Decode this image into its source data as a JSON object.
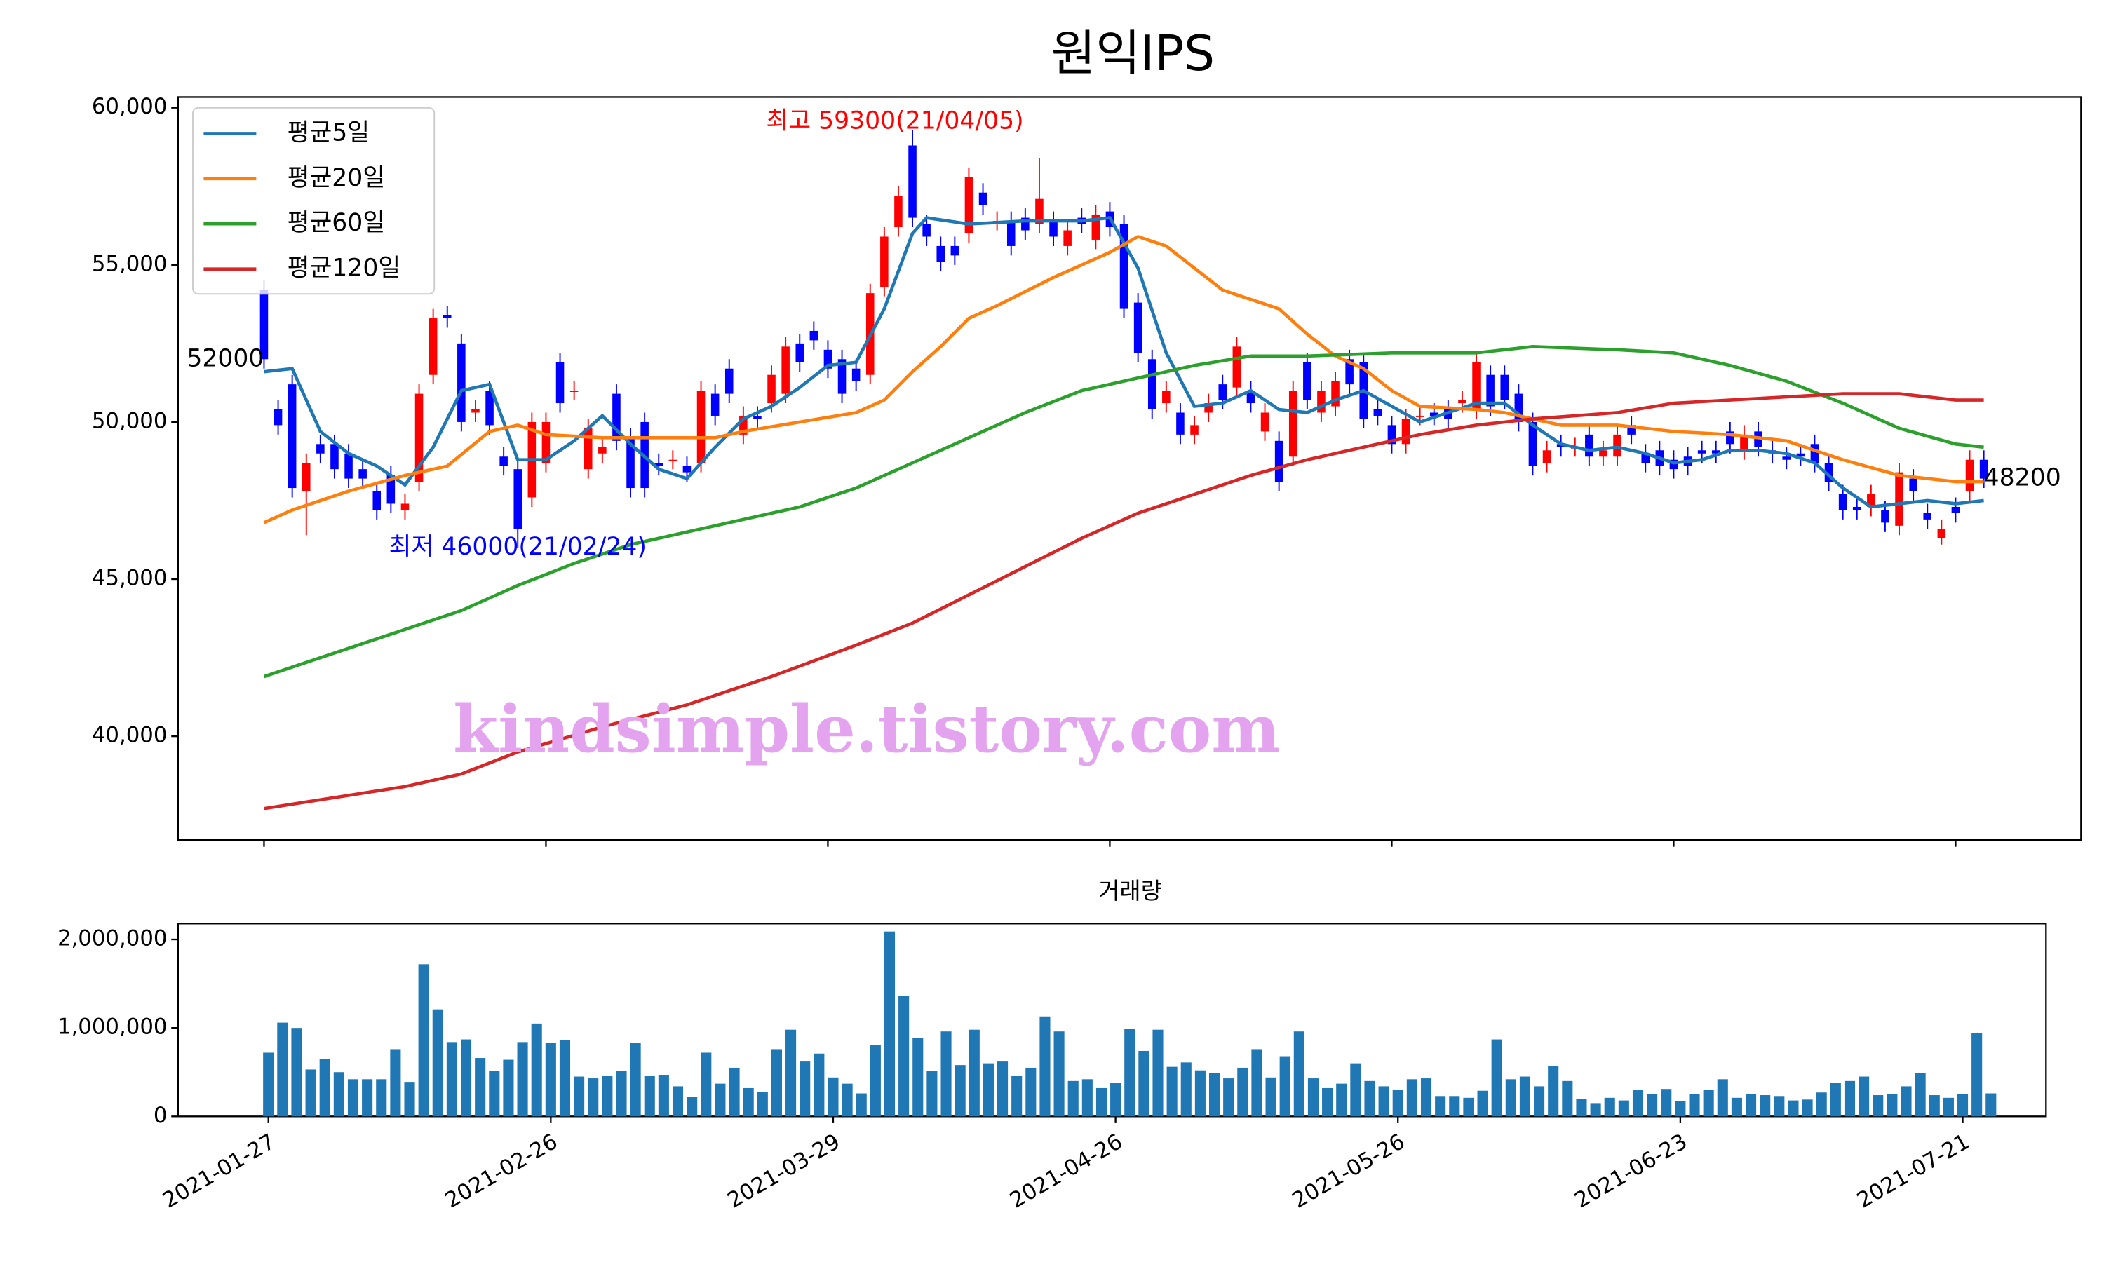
{
  "chart_data": [
    {
      "type": "candlestick",
      "title": "원익IPS",
      "up_color": "#ff0000",
      "down_color": "#0000ff",
      "open": [
        54200,
        50400,
        51200,
        47800,
        49300,
        49300,
        49000,
        48500,
        47800,
        48300,
        47200,
        48100,
        51500,
        53400,
        52500,
        50300,
        51000,
        48900,
        48500,
        47600,
        48700,
        51900,
        51000,
        48500,
        49000,
        50900,
        49500,
        50000,
        48700,
        48800,
        48600,
        48700,
        50900,
        51700,
        49600,
        50200,
        50600,
        50900,
        52500,
        52900,
        52300,
        52000,
        51700,
        51500,
        54300,
        56200,
        58800,
        56300,
        55600,
        55600,
        56000,
        57300,
        56400,
        56400,
        56500,
        56300,
        56400,
        55600,
        56500,
        55800,
        56700,
        56300,
        53800,
        52000,
        50600,
        50300,
        49600,
        50300,
        51200,
        51100,
        51000,
        49700,
        49400,
        48900,
        51900,
        50300,
        50500,
        52000,
        51900,
        50400,
        49900,
        49300,
        50200,
        50300,
        50400,
        50600,
        50400,
        51500,
        51500,
        50900,
        50000,
        48700,
        49300,
        49200,
        49600,
        48900,
        48900,
        49900,
        49000,
        49100,
        48800,
        48900,
        49100,
        49100,
        49700,
        49100,
        49700,
        49100,
        48900,
        49000,
        49300,
        48700,
        47700,
        47300,
        47300,
        47200,
        46700,
        48200,
        47100,
        46300,
        47300,
        47800,
        48800
      ],
      "high": [
        54500,
        50700,
        51500,
        49000,
        49600,
        49600,
        49300,
        48800,
        48100,
        48600,
        47700,
        51200,
        53600,
        53700,
        52800,
        50700,
        51300,
        49200,
        48800,
        50300,
        50300,
        52200,
        51300,
        50100,
        49500,
        51200,
        49800,
        50300,
        49000,
        49100,
        48900,
        51300,
        51200,
        52000,
        50500,
        50500,
        51800,
        52700,
        52800,
        53200,
        52600,
        52300,
        52000,
        54400,
        56200,
        57500,
        59300,
        56600,
        55900,
        55900,
        58100,
        57600,
        56700,
        56700,
        56800,
        58400,
        56700,
        56400,
        56800,
        56900,
        57000,
        56600,
        54100,
        52300,
        51300,
        50600,
        50200,
        50900,
        51500,
        52700,
        51300,
        50600,
        49700,
        51300,
        52200,
        51300,
        51600,
        52300,
        52200,
        50700,
        50200,
        50400,
        50500,
        50600,
        50700,
        51000,
        52200,
        51800,
        51800,
        51200,
        50300,
        49400,
        49600,
        49500,
        49900,
        49400,
        49900,
        50200,
        49300,
        49400,
        49100,
        49200,
        49400,
        49400,
        50000,
        49900,
        50000,
        49400,
        49200,
        49300,
        49600,
        49000,
        48000,
        47600,
        48000,
        47500,
        48700,
        48500,
        47400,
        46900,
        47600,
        49100,
        49100
      ],
      "low": [
        51700,
        49600,
        47600,
        46400,
        48700,
        48200,
        47900,
        47900,
        46900,
        47100,
        46900,
        47800,
        51200,
        53000,
        49700,
        50000,
        49600,
        48300,
        46000,
        47300,
        48400,
        50300,
        50700,
        48200,
        48700,
        49100,
        47600,
        47600,
        48300,
        48500,
        48100,
        48400,
        49900,
        50600,
        49300,
        49800,
        50300,
        50600,
        51600,
        52300,
        51400,
        50600,
        51000,
        51200,
        54000,
        55900,
        56200,
        55600,
        54800,
        55000,
        55700,
        56600,
        56100,
        55300,
        55800,
        56000,
        55600,
        55300,
        56000,
        55500,
        55900,
        53300,
        51900,
        50100,
        50300,
        49300,
        49300,
        50000,
        50400,
        50800,
        50300,
        49400,
        47800,
        48600,
        50400,
        50000,
        50200,
        50900,
        49800,
        49900,
        49000,
        49000,
        49900,
        49900,
        49800,
        50300,
        50100,
        50200,
        50400,
        49700,
        48300,
        48400,
        48900,
        48900,
        48600,
        48600,
        48600,
        49300,
        48400,
        48300,
        48200,
        48300,
        48700,
        48700,
        49000,
        48800,
        48900,
        48700,
        48500,
        48600,
        48400,
        47800,
        46900,
        46900,
        47000,
        46500,
        46400,
        47500,
        46600,
        46100,
        46800,
        47500,
        47900
      ],
      "close": [
        52000,
        49900,
        47900,
        48700,
        49000,
        48500,
        48200,
        48200,
        47200,
        47400,
        47400,
        50900,
        53300,
        53300,
        50000,
        50400,
        49900,
        48600,
        46600,
        50000,
        50000,
        50600,
        51000,
        49800,
        49200,
        49400,
        47900,
        47900,
        48600,
        48800,
        48400,
        51000,
        50200,
        50900,
        50200,
        50100,
        51500,
        52400,
        51900,
        52600,
        51700,
        50900,
        51300,
        54100,
        55900,
        57200,
        56500,
        55900,
        55100,
        55300,
        57800,
        56900,
        56400,
        55600,
        56100,
        57100,
        55900,
        56100,
        56300,
        56600,
        56200,
        53600,
        52200,
        50400,
        51000,
        49600,
        49900,
        50600,
        50700,
        52400,
        50600,
        50300,
        48100,
        51000,
        50700,
        51000,
        51300,
        51200,
        50100,
        50200,
        49300,
        50100,
        50200,
        50200,
        50100,
        50700,
        51900,
        50500,
        50700,
        50000,
        48600,
        49100,
        49200,
        49200,
        48900,
        49100,
        49600,
        49600,
        48700,
        48600,
        48500,
        48600,
        49000,
        49000,
        49300,
        49600,
        49200,
        49000,
        48800,
        48900,
        48700,
        48100,
        47200,
        47200,
        47700,
        46800,
        48400,
        47800,
        46900,
        46600,
        47100,
        48800,
        48200
      ],
      "series": [
        {
          "name": "평균5일",
          "color": "#1f77b4",
          "x": [
            0,
            2,
            4,
            6,
            8,
            10,
            12,
            14,
            16,
            18,
            20,
            22,
            24,
            26,
            28,
            30,
            32,
            34,
            36,
            38,
            40,
            42,
            44,
            46,
            47,
            50,
            54,
            58,
            60,
            62,
            64,
            66,
            68,
            70,
            72,
            74,
            76,
            78,
            80,
            82,
            84,
            86,
            88,
            90,
            92,
            94,
            96,
            98,
            100,
            102,
            104,
            106,
            108,
            110,
            112,
            114,
            116,
            118,
            120,
            122
          ],
          "values": [
            51600,
            51700,
            49700,
            49000,
            48600,
            48000,
            49200,
            51000,
            51200,
            48800,
            48800,
            49400,
            50200,
            49300,
            48500,
            48200,
            49200,
            50100,
            50500,
            51100,
            51800,
            51900,
            53600,
            56000,
            56500,
            56300,
            56400,
            56400,
            56500,
            54900,
            52200,
            50500,
            50600,
            51000,
            50400,
            50300,
            50700,
            51000,
            50500,
            50000,
            50300,
            50600,
            50600,
            49900,
            49300,
            49100,
            49200,
            49000,
            48700,
            48800,
            49100,
            49100,
            49000,
            48700,
            47900,
            47300,
            47400,
            47500,
            47400,
            47500
          ]
        },
        {
          "name": "평균20일",
          "color": "#ff7f0e",
          "x": [
            0,
            2,
            6,
            10,
            13,
            16,
            18,
            20,
            24,
            28,
            32,
            34,
            38,
            42,
            44,
            46,
            48,
            50,
            52,
            56,
            60,
            62,
            64,
            66,
            68,
            70,
            72,
            74,
            76,
            78,
            80,
            82,
            86,
            88,
            92,
            96,
            100,
            104,
            108,
            112,
            116,
            120,
            122
          ],
          "values": [
            46800,
            47200,
            47800,
            48300,
            48600,
            49700,
            49900,
            49600,
            49500,
            49500,
            49500,
            49700,
            50000,
            50300,
            50700,
            51600,
            52400,
            53300,
            53700,
            54600,
            55400,
            55900,
            55600,
            54900,
            54200,
            53900,
            53600,
            52800,
            52100,
            51700,
            51000,
            50500,
            50400,
            50300,
            49900,
            49900,
            49700,
            49600,
            49400,
            48800,
            48300,
            48100,
            48100
          ]
        },
        {
          "name": "평균60일",
          "color": "#2ca02c",
          "x": [
            0,
            4,
            10,
            14,
            16,
            18,
            22,
            26,
            30,
            34,
            38,
            42,
            46,
            50,
            54,
            58,
            62,
            66,
            70,
            74,
            80,
            86,
            90,
            96,
            100,
            104,
            108,
            112,
            116,
            120,
            122
          ],
          "values": [
            41900,
            42500,
            43400,
            44000,
            44400,
            44800,
            45500,
            46100,
            46500,
            46900,
            47300,
            47900,
            48700,
            49500,
            50300,
            51000,
            51400,
            51800,
            52100,
            52100,
            52200,
            52200,
            52400,
            52300,
            52200,
            51800,
            51300,
            50600,
            49800,
            49300,
            49200
          ]
        },
        {
          "name": "평균120일",
          "color": "#d62728",
          "x": [
            0,
            10,
            14,
            18,
            24,
            30,
            36,
            42,
            46,
            50,
            54,
            58,
            62,
            66,
            70,
            74,
            78,
            82,
            86,
            90,
            96,
            100,
            104,
            108,
            112,
            116,
            120,
            122
          ],
          "values": [
            37700,
            38400,
            38800,
            39500,
            40300,
            41000,
            41900,
            42900,
            43600,
            44500,
            45400,
            46300,
            47100,
            47700,
            48300,
            48800,
            49200,
            49600,
            49900,
            50100,
            50300,
            50600,
            50700,
            50800,
            50900,
            50900,
            50700,
            50700
          ]
        }
      ],
      "annotations": [
        {
          "text": "최고 59300(21/04/05)",
          "color": "#ff0000"
        },
        {
          "text": "최저 46000(21/02/24)",
          "color": "#0000ff"
        },
        {
          "text": "52000",
          "color": "#000000"
        },
        {
          "text": "48200",
          "color": "#000000"
        }
      ],
      "watermark": "kindsimple.tistory.com",
      "legend": "upper left",
      "xlim": [
        -6.1,
        128.9
      ],
      "xticks": [
        0,
        20,
        40,
        60,
        80,
        100,
        120
      ],
      "ylim": [
        36700,
        60340
      ],
      "yticks": [
        {
          "value": 40000,
          "label": "40,000"
        },
        {
          "value": 45000,
          "label": "45,000"
        },
        {
          "value": 50000,
          "label": "50,000"
        },
        {
          "value": 55000,
          "label": "55,000"
        },
        {
          "value": 60000,
          "label": "60,000"
        }
      ]
    },
    {
      "type": "bar",
      "title": "거래량",
      "color": "#1f77b4",
      "values": [
        720000,
        1060000,
        1000000,
        530000,
        650000,
        500000,
        420000,
        420000,
        420000,
        760000,
        390000,
        1720000,
        1210000,
        840000,
        870000,
        660000,
        510000,
        640000,
        840000,
        1050000,
        830000,
        860000,
        450000,
        430000,
        460000,
        510000,
        830000,
        460000,
        470000,
        340000,
        220000,
        720000,
        370000,
        550000,
        320000,
        280000,
        760000,
        980000,
        620000,
        710000,
        440000,
        370000,
        260000,
        810000,
        2090000,
        1360000,
        890000,
        510000,
        960000,
        580000,
        980000,
        600000,
        620000,
        460000,
        550000,
        1130000,
        960000,
        400000,
        420000,
        320000,
        380000,
        990000,
        740000,
        980000,
        560000,
        610000,
        520000,
        490000,
        430000,
        550000,
        760000,
        440000,
        680000,
        960000,
        430000,
        320000,
        370000,
        600000,
        400000,
        340000,
        300000,
        420000,
        430000,
        230000,
        230000,
        210000,
        290000,
        870000,
        420000,
        450000,
        340000,
        570000,
        400000,
        200000,
        150000,
        210000,
        180000,
        300000,
        250000,
        310000,
        170000,
        250000,
        300000,
        420000,
        210000,
        250000,
        240000,
        230000,
        180000,
        190000,
        270000,
        380000,
        400000,
        450000,
        240000,
        250000,
        340000,
        490000,
        240000,
        210000,
        250000,
        940000,
        260000
      ],
      "xlim": [
        -6.4,
        125.9
      ],
      "xticks": [
        {
          "value": 0,
          "label": "2021-01-27"
        },
        {
          "value": 20,
          "label": "2021-02-26"
        },
        {
          "value": 40,
          "label": "2021-03-29"
        },
        {
          "value": 60,
          "label": "2021-04-26"
        },
        {
          "value": 80,
          "label": "2021-05-26"
        },
        {
          "value": 100,
          "label": "2021-06-23"
        },
        {
          "value": 120,
          "label": "2021-07-21"
        }
      ],
      "ylim": [
        0,
        2180000
      ],
      "yticks": [
        0,
        {
          "value": 1000000,
          "label": "1,000,000"
        },
        {
          "value": 2000000,
          "label": "2,000,000"
        }
      ]
    }
  ]
}
